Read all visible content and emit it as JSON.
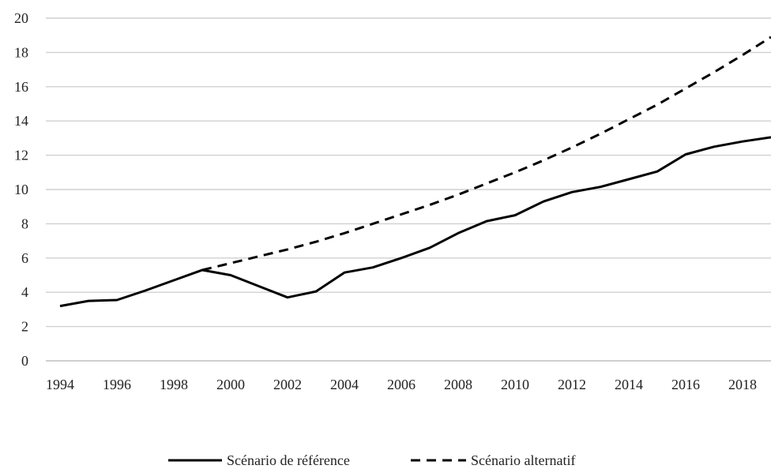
{
  "chart_data": {
    "type": "line",
    "title": "",
    "xlabel": "",
    "ylabel": "",
    "x": [
      1994,
      1995,
      1996,
      1997,
      1998,
      1999,
      2000,
      2001,
      2002,
      2003,
      2004,
      2005,
      2006,
      2007,
      2008,
      2009,
      2010,
      2011,
      2012,
      2013,
      2014,
      2015,
      2016,
      2017,
      2018,
      2019
    ],
    "xticks": [
      "1994",
      "1996",
      "1998",
      "2000",
      "2002",
      "2004",
      "2006",
      "2008",
      "2010",
      "2012",
      "2014",
      "2016",
      "2018"
    ],
    "yticks": [
      "0",
      "2",
      "4",
      "6",
      "8",
      "10",
      "12",
      "14",
      "16",
      "18",
      "20"
    ],
    "ylim": [
      0,
      20
    ],
    "xlim": [
      1994,
      2019
    ],
    "grid": "horizontal",
    "legend_position": "bottom",
    "series": [
      {
        "name": "Scénario de référence",
        "style": "solid",
        "color": "#000000",
        "values": [
          3.2,
          3.5,
          3.55,
          4.1,
          4.7,
          5.3,
          5.0,
          4.35,
          3.7,
          4.05,
          5.15,
          5.45,
          6.0,
          6.6,
          7.45,
          8.15,
          8.5,
          9.3,
          9.85,
          10.15,
          10.6,
          11.05,
          12.05,
          12.5,
          12.8,
          13.05
        ]
      },
      {
        "name": "Scénario alternatif",
        "style": "dashed",
        "color": "#000000",
        "values": [
          null,
          null,
          null,
          null,
          null,
          5.3,
          5.7,
          6.1,
          6.5,
          6.95,
          7.45,
          8.0,
          8.55,
          9.1,
          9.7,
          10.35,
          11.0,
          11.7,
          12.45,
          13.25,
          14.1,
          14.95,
          15.9,
          16.85,
          17.85,
          18.9
        ]
      }
    ]
  },
  "colors": {
    "grid": "#d0d0d0",
    "axis": "#bfbfbf",
    "line": "#000000"
  }
}
